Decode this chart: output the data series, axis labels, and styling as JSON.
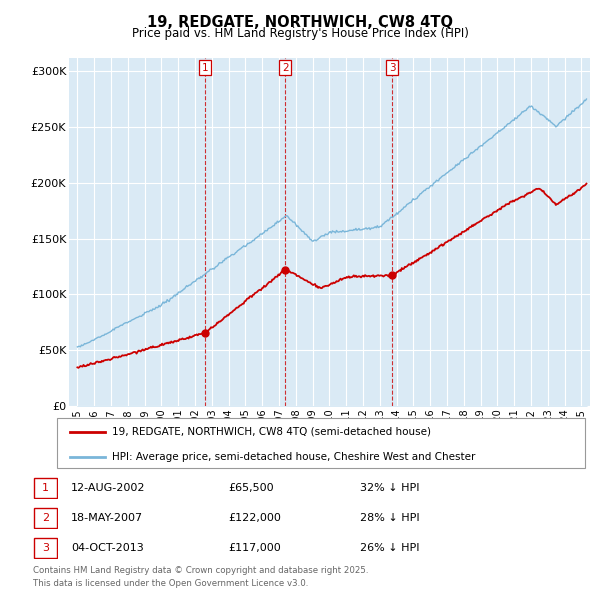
{
  "title": "19, REDGATE, NORTHWICH, CW8 4TQ",
  "subtitle": "Price paid vs. HM Land Registry's House Price Index (HPI)",
  "ylabel_ticks": [
    "£0",
    "£50K",
    "£100K",
    "£150K",
    "£200K",
    "£250K",
    "£300K"
  ],
  "ytick_values": [
    0,
    50000,
    100000,
    150000,
    200000,
    250000,
    300000
  ],
  "ylim": [
    0,
    312000
  ],
  "xlim_start": 1994.5,
  "xlim_end": 2025.5,
  "hpi_color": "#7ab6d9",
  "hpi_fill_color": "#daeaf5",
  "price_color": "#cc0000",
  "marker_color": "#cc0000",
  "sale_dates": [
    2002.62,
    2007.38,
    2013.75
  ],
  "sale_prices": [
    65500,
    122000,
    117000
  ],
  "sale_labels": [
    "1",
    "2",
    "3"
  ],
  "legend_price_label": "19, REDGATE, NORTHWICH, CW8 4TQ (semi-detached house)",
  "legend_hpi_label": "HPI: Average price, semi-detached house, Cheshire West and Chester",
  "table_data": [
    {
      "num": "1",
      "date": "12-AUG-2002",
      "price": "£65,500",
      "pct": "32% ↓ HPI"
    },
    {
      "num": "2",
      "date": "18-MAY-2007",
      "price": "£122,000",
      "pct": "28% ↓ HPI"
    },
    {
      "num": "3",
      "date": "04-OCT-2013",
      "price": "£117,000",
      "pct": "26% ↓ HPI"
    }
  ],
  "footer": "Contains HM Land Registry data © Crown copyright and database right 2025.\nThis data is licensed under the Open Government Licence v3.0.",
  "chart_bg": "#daeaf5",
  "grid_color": "#ffffff"
}
